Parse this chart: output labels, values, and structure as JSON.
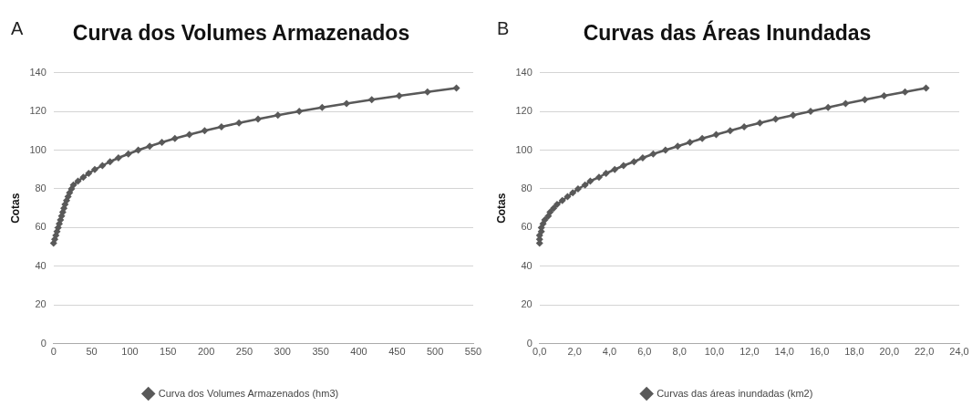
{
  "chart_data": [
    {
      "type": "line",
      "title": "Curva dos Volumes Armazenados",
      "ylabel": "Cotas",
      "annotations": [
        "A"
      ],
      "xlim": [
        0,
        550
      ],
      "xticks": [
        0,
        50,
        100,
        150,
        200,
        250,
        300,
        350,
        400,
        450,
        500,
        550
      ],
      "ylim": [
        0,
        140
      ],
      "yticks": [
        0,
        20,
        40,
        60,
        80,
        100,
        120,
        140
      ],
      "grid": "y",
      "legend": "bottom",
      "marker": "diamond",
      "line_style": "solid",
      "series": [
        {
          "name": "Curva dos Volumes Armazenados (hm3)",
          "color": "#595959",
          "x": [
            0,
            1.5,
            3,
            4.5,
            6,
            7.5,
            9,
            10.5,
            12,
            13.5,
            15,
            17,
            19,
            21,
            23.5,
            26,
            32,
            39,
            46,
            54,
            64,
            74,
            85,
            98,
            111,
            126,
            142,
            159,
            178,
            198,
            220,
            243,
            268,
            294,
            322,
            352,
            384,
            417,
            453,
            490,
            528
          ],
          "values": [
            52,
            54,
            56,
            58,
            60,
            62,
            64,
            66,
            68,
            70,
            72,
            74,
            76,
            78,
            80,
            82,
            84,
            86,
            88,
            90,
            92,
            94,
            96,
            98,
            100,
            102,
            104,
            106,
            108,
            110,
            112,
            114,
            116,
            118,
            120,
            122,
            124,
            126,
            128,
            130,
            132
          ]
        }
      ]
    },
    {
      "type": "line",
      "title": "Curvas das Áreas Inundadas",
      "ylabel": "Cotas",
      "annotations": [
        "B"
      ],
      "xlim": [
        0,
        24
      ],
      "xticks": [
        {
          "value": 0,
          "label": "0,0"
        },
        {
          "value": 2,
          "label": "2,0"
        },
        {
          "value": 4,
          "label": "4,0"
        },
        {
          "value": 6,
          "label": "6,0"
        },
        {
          "value": 8,
          "label": "8,0"
        },
        {
          "value": 10,
          "label": "10,0"
        },
        {
          "value": 12,
          "label": "12,0"
        },
        {
          "value": 14,
          "label": "14,0"
        },
        {
          "value": 16,
          "label": "16,0"
        },
        {
          "value": 18,
          "label": "18,0"
        },
        {
          "value": 20,
          "label": "20,0"
        },
        {
          "value": 22,
          "label": "22,0"
        },
        {
          "value": 24,
          "label": "24,0"
        }
      ],
      "ylim": [
        0,
        140
      ],
      "yticks": [
        0,
        20,
        40,
        60,
        80,
        100,
        120,
        140
      ],
      "grid": "y",
      "legend": "bottom",
      "marker": "diamond",
      "line_style": "solid",
      "series": [
        {
          "name": "Curvas das áreas inundadas (km2)",
          "color": "#595959",
          "x": [
            0,
            0,
            0,
            0.1,
            0.1,
            0.2,
            0.3,
            0.5,
            0.6,
            0.8,
            1.0,
            1.3,
            1.6,
            1.9,
            2.2,
            2.6,
            2.9,
            3.4,
            3.8,
            4.3,
            4.8,
            5.4,
            5.9,
            6.5,
            7.2,
            7.9,
            8.6,
            9.3,
            10.1,
            10.9,
            11.7,
            12.6,
            13.5,
            14.5,
            15.5,
            16.5,
            17.5,
            18.6,
            19.7,
            20.9,
            22.1
          ],
          "values": [
            52,
            54,
            56,
            58,
            60,
            62,
            64,
            66,
            68,
            70,
            72,
            74,
            76,
            78,
            80,
            82,
            84,
            86,
            88,
            90,
            92,
            94,
            96,
            98,
            100,
            102,
            104,
            106,
            108,
            110,
            112,
            114,
            116,
            118,
            120,
            122,
            124,
            126,
            128,
            130,
            132
          ]
        }
      ]
    }
  ]
}
